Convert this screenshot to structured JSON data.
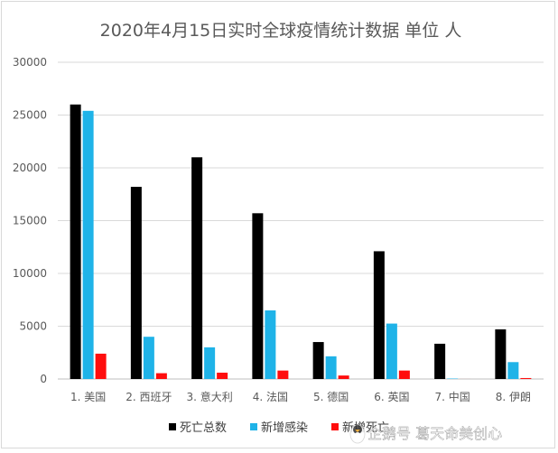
{
  "chart_data": {
    "type": "bar",
    "title": "2020年4月15日实时全球疫情统计数据 单位 人",
    "categories": [
      "1. 美国",
      "2. 西班牙",
      "3. 意大利",
      "4. 法国",
      "5. 德国",
      "6. 英国",
      "7. 中国",
      "8. 伊朗"
    ],
    "ylim": [
      0,
      30000
    ],
    "yticks": [
      0,
      5000,
      10000,
      15000,
      20000,
      25000,
      30000
    ],
    "grid": true,
    "legend_position": "bottom",
    "series": [
      {
        "name": "死亡总数",
        "color": "#000000",
        "values": [
          26000,
          18200,
          21000,
          15700,
          3500,
          12100,
          3340,
          4700
        ]
      },
      {
        "name": "新增感染",
        "color": "#1fb3e8",
        "values": [
          25400,
          4000,
          3000,
          6500,
          2150,
          5250,
          40,
          1600
        ]
      },
      {
        "name": "新增死亡",
        "color": "#ff0d0d",
        "values": [
          2400,
          550,
          600,
          800,
          330,
          800,
          2,
          90
        ]
      }
    ]
  },
  "watermark": {
    "text": "企鹅号 葛天命美创心",
    "icon": "penguin-icon"
  }
}
